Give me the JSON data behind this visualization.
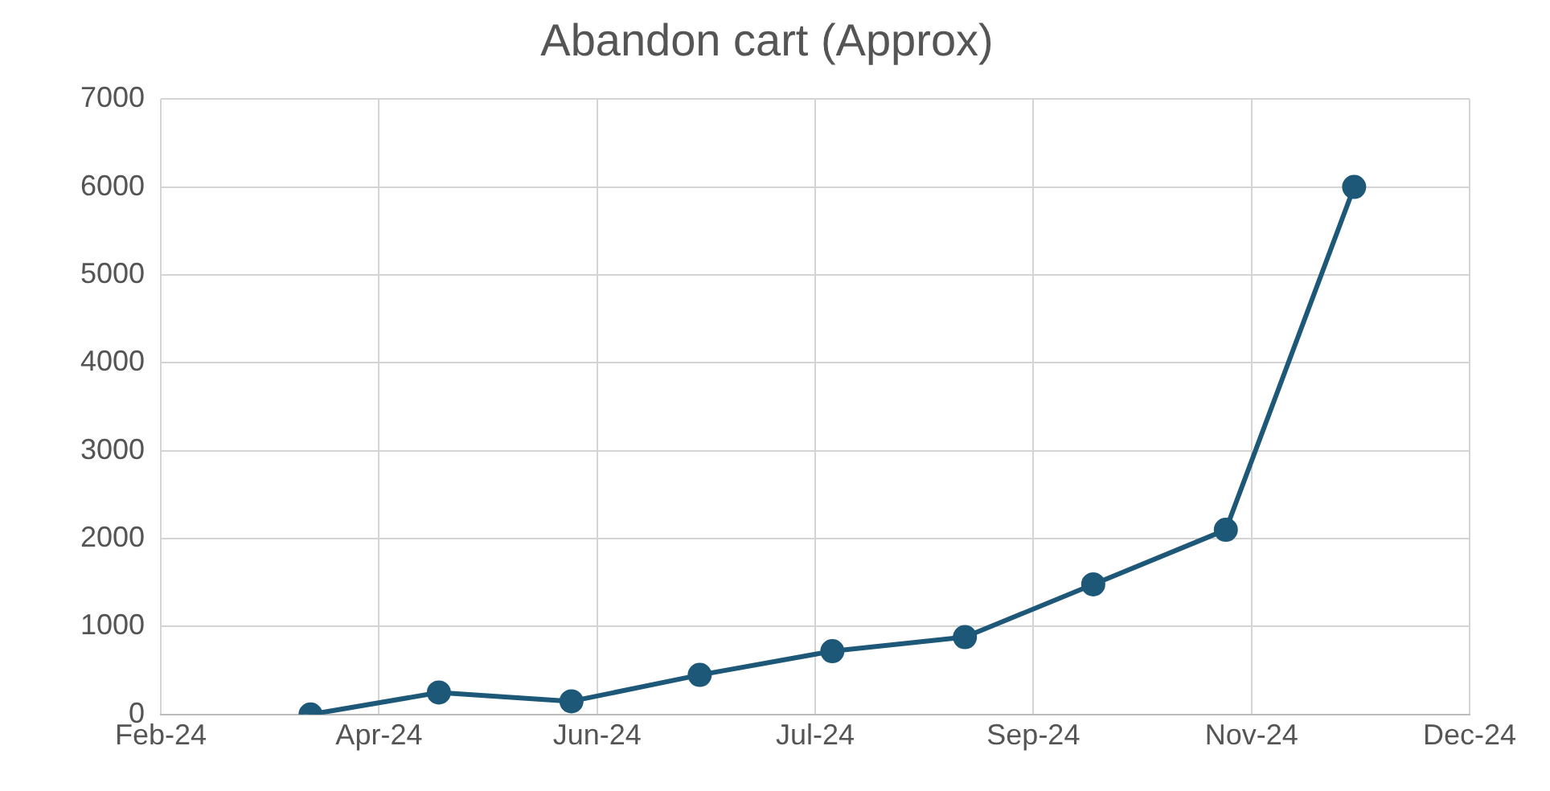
{
  "chart_data": {
    "type": "line",
    "title": "Abandon cart (Approx)",
    "x": [
      "2024-03-31",
      "2024-04-30",
      "2024-05-31",
      "2024-06-30",
      "2024-07-31",
      "2024-08-31",
      "2024-09-30",
      "2024-10-31",
      "2024-11-30"
    ],
    "series": [
      {
        "color": "#1d5878",
        "values": [
          0,
          250,
          150,
          450,
          720,
          880,
          1480,
          2100,
          6000
        ]
      }
    ],
    "xlim": [
      "2024-02-25",
      "2024-12-27"
    ],
    "xticks": [
      {
        "value": "2024-02-25",
        "label": "Feb-24"
      },
      {
        "value": "2024-04-16",
        "label": "Apr-24"
      },
      {
        "value": "2024-06-06",
        "label": "Jun-24"
      },
      {
        "value": "2024-07-27",
        "label": "Jul-24"
      },
      {
        "value": "2024-09-16",
        "label": "Sep-24"
      },
      {
        "value": "2024-11-06",
        "label": "Nov-24"
      },
      {
        "value": "2024-12-27",
        "label": "Dec-24"
      }
    ],
    "ylim": [
      0,
      7000
    ],
    "yticks": [
      0,
      1000,
      2000,
      3000,
      4000,
      5000,
      6000,
      7000
    ],
    "grid": true,
    "legend": false,
    "marker": "circle",
    "line_style": "solid"
  }
}
